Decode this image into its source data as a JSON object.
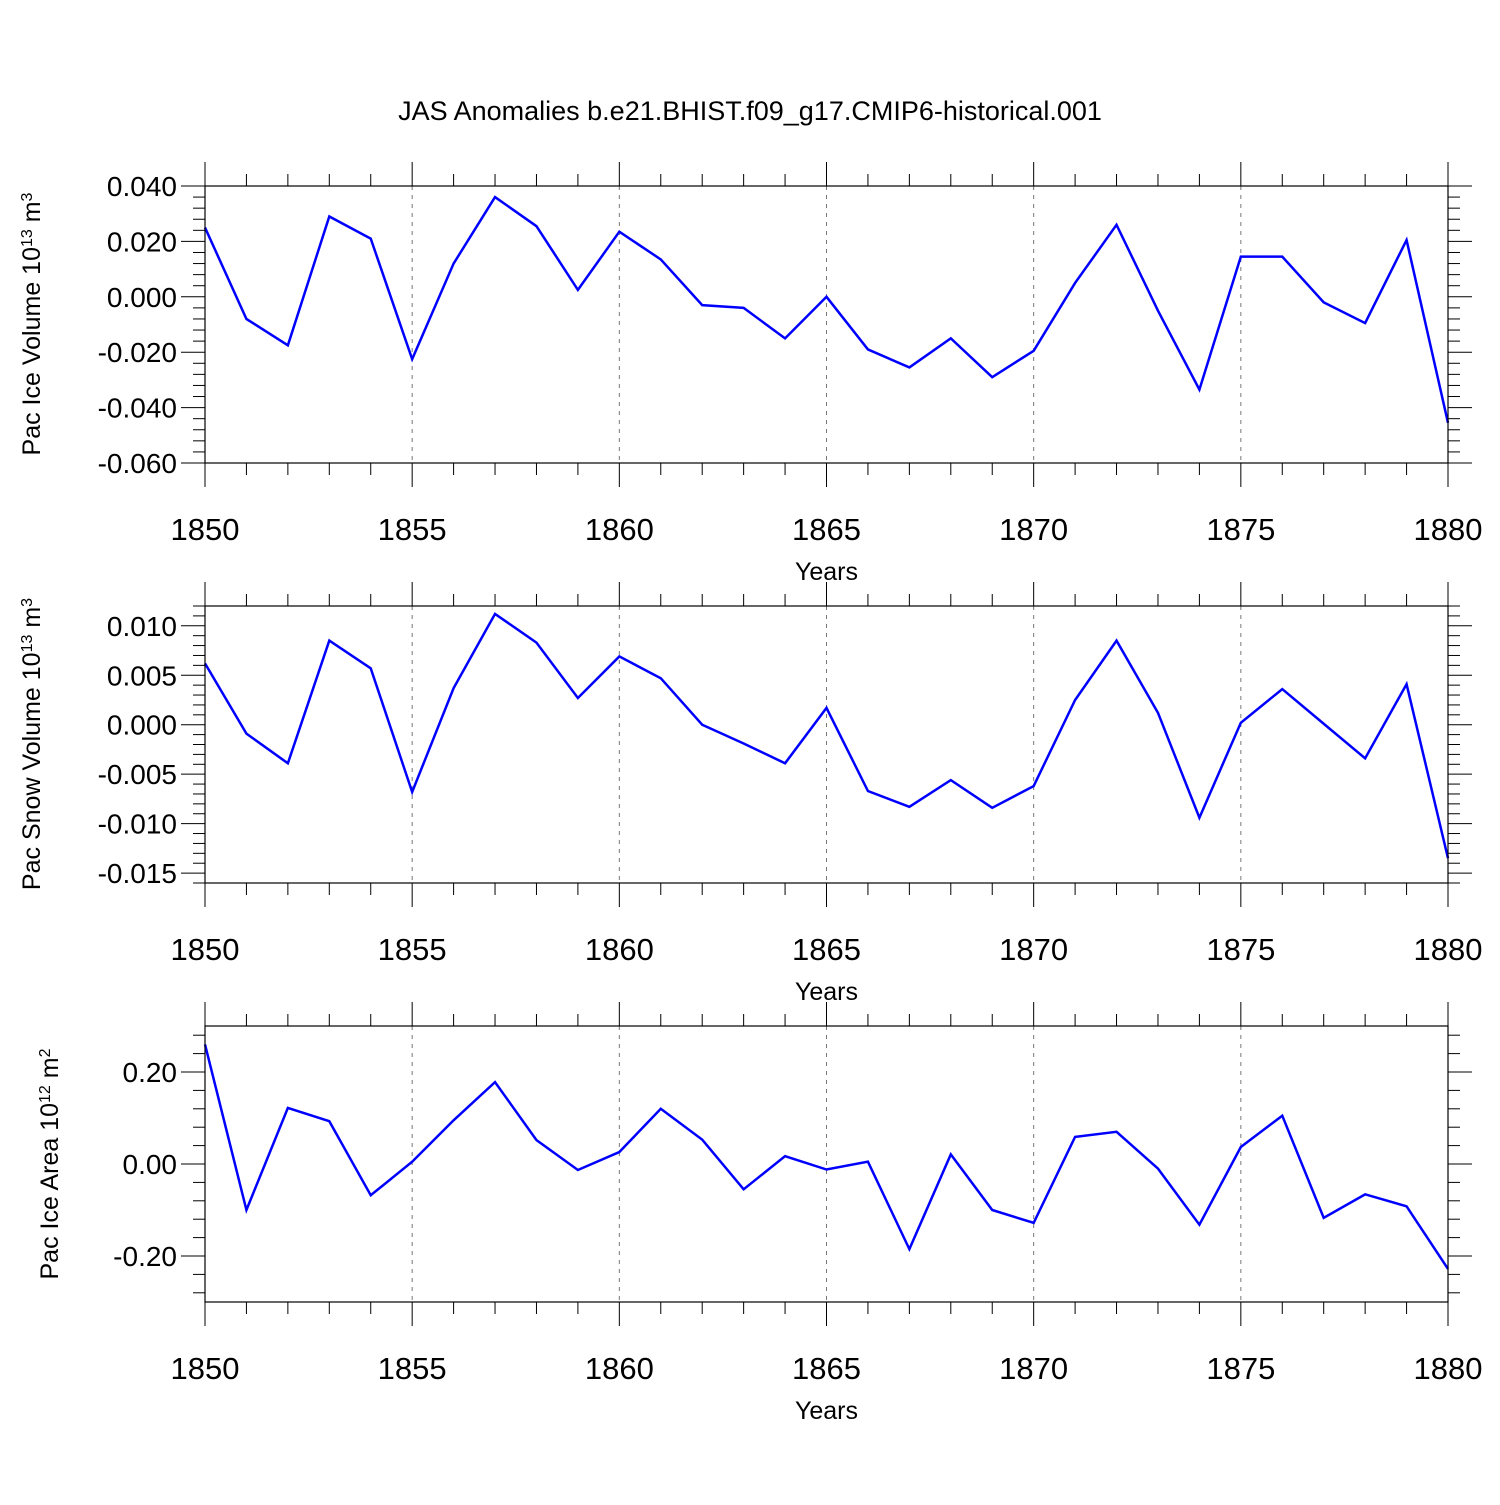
{
  "title": "JAS Anomalies b.e21.BHIST.f09_g17.CMIP6-historical.001",
  "colors": {
    "series": "#0000ff",
    "axis": "#000000",
    "grid": "#777777"
  },
  "chart_data": [
    {
      "type": "line",
      "ylabel": "Pac Ice Volume 10",
      "ylabel_exp": "13",
      "ylabel_unit": " m",
      "ylabel_unit_exp": "3",
      "xlabel": "Years",
      "xlim": [
        1850,
        1880
      ],
      "ylim": [
        -0.06,
        0.04
      ],
      "yticks": [
        -0.06,
        -0.04,
        -0.02,
        0.0,
        0.02,
        0.04
      ],
      "ytick_labels": [
        "-0.060",
        "-0.040",
        "-0.020",
        "0.000",
        "0.020",
        "0.040"
      ],
      "xticks": [
        1850,
        1855,
        1860,
        1865,
        1870,
        1875,
        1880
      ],
      "xtick_labels": [
        "1850",
        "1855",
        "1860",
        "1865",
        "1870",
        "1875",
        "1880"
      ],
      "x": [
        1850,
        1851,
        1852,
        1853,
        1854,
        1855,
        1856,
        1857,
        1858,
        1859,
        1860,
        1861,
        1862,
        1863,
        1864,
        1865,
        1866,
        1867,
        1868,
        1869,
        1870,
        1871,
        1872,
        1873,
        1874,
        1875,
        1876,
        1877,
        1878,
        1879,
        1880
      ],
      "series": [
        {
          "name": "Pac Ice Volume",
          "values": [
            0.025,
            -0.008,
            -0.0175,
            0.029,
            0.021,
            -0.0225,
            0.012,
            0.036,
            0.0255,
            0.0025,
            0.0235,
            0.0135,
            -0.003,
            -0.004,
            -0.015,
            0.0,
            -0.019,
            -0.0255,
            -0.015,
            -0.029,
            -0.0195,
            0.005,
            0.026,
            -0.005,
            -0.0335,
            0.0145,
            0.0145,
            -0.002,
            -0.0095,
            0.0205,
            -0.0455
          ]
        }
      ]
    },
    {
      "type": "line",
      "ylabel": "Pac Snow Volume 10",
      "ylabel_exp": "13",
      "ylabel_unit": " m",
      "ylabel_unit_exp": "3",
      "xlabel": "Years",
      "xlim": [
        1850,
        1880
      ],
      "ylim": [
        -0.016,
        0.012
      ],
      "yticks": [
        -0.015,
        -0.01,
        -0.005,
        0.0,
        0.005,
        0.01
      ],
      "ytick_labels": [
        "-0.015",
        "-0.010",
        "-0.005",
        "0.000",
        "0.005",
        "0.010"
      ],
      "xticks": [
        1850,
        1855,
        1860,
        1865,
        1870,
        1875,
        1880
      ],
      "xtick_labels": [
        "1850",
        "1855",
        "1860",
        "1865",
        "1870",
        "1875",
        "1880"
      ],
      "x": [
        1850,
        1851,
        1852,
        1853,
        1854,
        1855,
        1856,
        1857,
        1858,
        1859,
        1860,
        1861,
        1862,
        1863,
        1864,
        1865,
        1866,
        1867,
        1868,
        1869,
        1870,
        1871,
        1872,
        1873,
        1874,
        1875,
        1876,
        1877,
        1878,
        1879,
        1880
      ],
      "series": [
        {
          "name": "Pac Snow Volume",
          "values": [
            0.0062,
            -0.0009,
            -0.0039,
            0.0085,
            0.0057,
            -0.0068,
            0.0037,
            0.0112,
            0.0083,
            0.0027,
            0.0069,
            0.0047,
            0.0,
            -0.0019,
            -0.0039,
            0.0017,
            -0.0067,
            -0.0083,
            -0.0056,
            -0.0084,
            -0.0062,
            0.0025,
            0.0085,
            0.0012,
            -0.0094,
            0.0002,
            0.0036,
            0.0001,
            -0.0034,
            0.0041,
            -0.0135
          ]
        }
      ]
    },
    {
      "type": "line",
      "ylabel": "Pac Ice Area 10",
      "ylabel_exp": "12",
      "ylabel_unit": " m",
      "ylabel_unit_exp": "2",
      "xlabel": "Years",
      "xlim": [
        1850,
        1880
      ],
      "ylim": [
        -0.3,
        0.3
      ],
      "yticks": [
        -0.2,
        0.0,
        0.2
      ],
      "ytick_labels": [
        "-0.20",
        "0.00",
        "0.20"
      ],
      "xticks": [
        1850,
        1855,
        1860,
        1865,
        1870,
        1875,
        1880
      ],
      "xtick_labels": [
        "1850",
        "1855",
        "1860",
        "1865",
        "1870",
        "1875",
        "1880"
      ],
      "x": [
        1850,
        1851,
        1852,
        1853,
        1854,
        1855,
        1856,
        1857,
        1858,
        1859,
        1860,
        1861,
        1862,
        1863,
        1864,
        1865,
        1866,
        1867,
        1868,
        1869,
        1870,
        1871,
        1872,
        1873,
        1874,
        1875,
        1876,
        1877,
        1878,
        1879,
        1880
      ],
      "series": [
        {
          "name": "Pac Ice Area",
          "values": [
            0.26,
            -0.1,
            0.122,
            0.093,
            -0.068,
            0.005,
            0.095,
            0.178,
            0.052,
            -0.013,
            0.026,
            0.12,
            0.053,
            -0.055,
            0.017,
            -0.012,
            0.005,
            -0.185,
            0.021,
            -0.1,
            -0.128,
            0.059,
            0.07,
            -0.01,
            -0.132,
            0.037,
            0.105,
            -0.117,
            -0.066,
            -0.092,
            -0.228
          ]
        }
      ]
    }
  ]
}
